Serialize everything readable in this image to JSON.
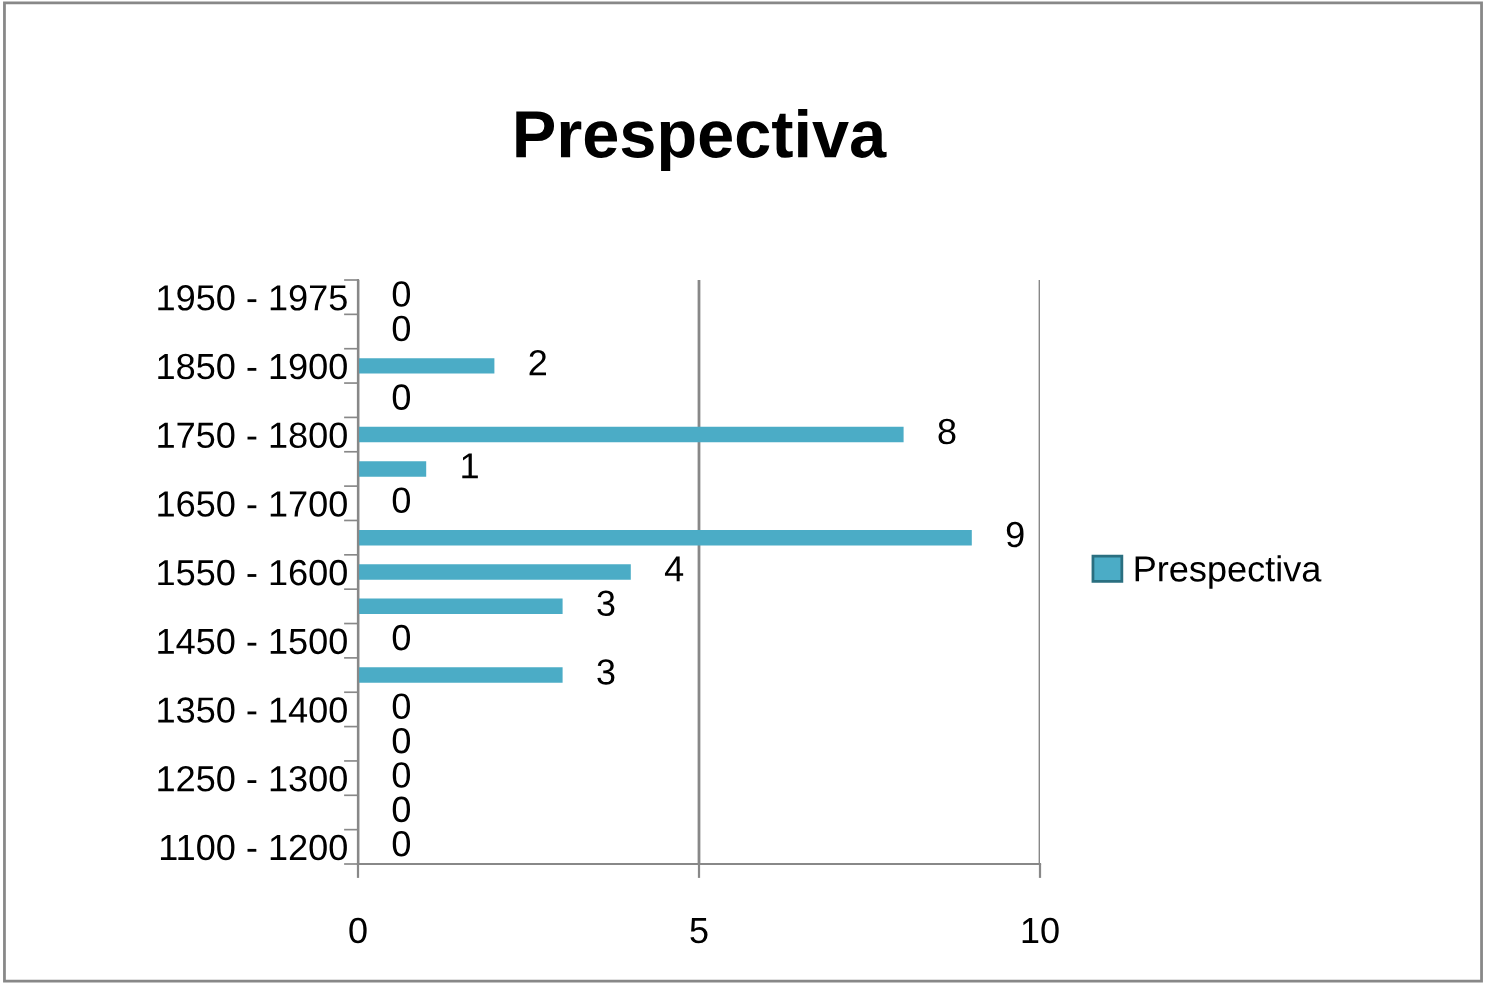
{
  "chart_data": {
    "type": "bar",
    "orientation": "horizontal",
    "title": "Prespectiva",
    "categories": [
      "1950 - 1975",
      null,
      "1850 - 1900",
      null,
      "1750 - 1800",
      null,
      "1650 - 1700",
      null,
      "1550 - 1600",
      null,
      "1450 - 1500",
      null,
      "1350 - 1400",
      null,
      "1250 - 1300",
      null,
      "1100 - 1200"
    ],
    "series": [
      {
        "name": "Prespectiva",
        "color": "#4bacc6",
        "values": [
          0,
          0,
          2,
          0,
          8,
          1,
          0,
          9,
          4,
          3,
          0,
          3,
          0,
          0,
          0,
          0,
          0
        ]
      }
    ],
    "xlim": [
      0,
      10
    ],
    "xticks": [
      0,
      5,
      10
    ],
    "grid": "x",
    "legend": "right",
    "data_labels": true
  }
}
